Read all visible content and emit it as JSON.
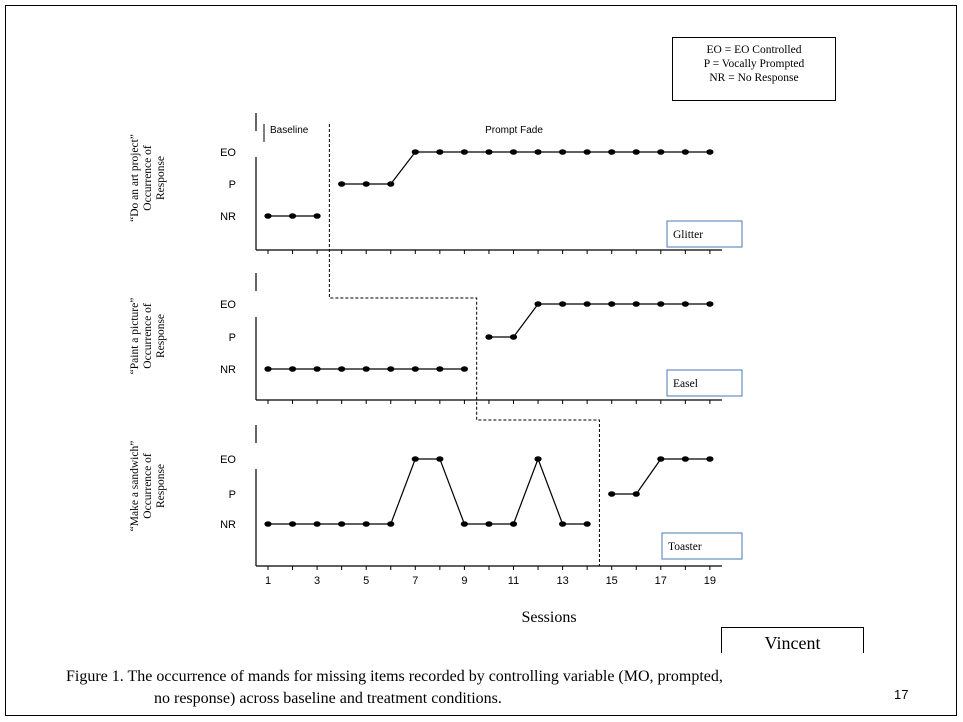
{
  "legend": {
    "lines": [
      "EO = EO Controlled",
      "P = Vocally Prompted",
      "NR = No Response"
    ]
  },
  "phase_labels": {
    "baseline": "Baseline",
    "treatment": "Prompt Fade"
  },
  "xlabel": "Sessions",
  "participant": "Vincent",
  "caption": {
    "line1": "Figure 1. The occurrence of mands for missing items recorded by controlling variable (MO, prompted,",
    "line2": "no response) across baseline and treatment conditions."
  },
  "page_number": "17",
  "chart_data": [
    {
      "type": "line",
      "panel": "Glitter",
      "ylabel_lines": [
        "“Do an art project”",
        "Occurrence of",
        "Response"
      ],
      "yticks": [
        "NR",
        "P",
        "EO"
      ],
      "phase_change_after_session": 3.5,
      "series": [
        {
          "phase": "Baseline",
          "x": [
            1,
            2,
            3
          ],
          "y": [
            "NR",
            "NR",
            "NR"
          ]
        },
        {
          "phase": "Prompt Fade",
          "x": [
            4,
            5,
            6,
            7,
            8,
            9,
            10,
            11,
            12,
            13,
            14,
            15,
            16,
            17,
            18,
            19
          ],
          "y": [
            "P",
            "P",
            "P",
            "EO",
            "EO",
            "EO",
            "EO",
            "EO",
            "EO",
            "EO",
            "EO",
            "EO",
            "EO",
            "EO",
            "EO",
            "EO"
          ]
        }
      ]
    },
    {
      "type": "line",
      "panel": "Easel",
      "ylabel_lines": [
        "“Paint a picture”",
        "Occurrence of",
        "Response"
      ],
      "yticks": [
        "NR",
        "P",
        "EO"
      ],
      "phase_change_after_session": 9.5,
      "series": [
        {
          "phase": "Baseline",
          "x": [
            1,
            2,
            3,
            4,
            5,
            6,
            7,
            8,
            9
          ],
          "y": [
            "NR",
            "NR",
            "NR",
            "NR",
            "NR",
            "NR",
            "NR",
            "NR",
            "NR"
          ]
        },
        {
          "phase": "Prompt Fade",
          "x": [
            10,
            11,
            12,
            13,
            14,
            15,
            16,
            17,
            18,
            19
          ],
          "y": [
            "P",
            "P",
            "EO",
            "EO",
            "EO",
            "EO",
            "EO",
            "EO",
            "EO",
            "EO"
          ]
        }
      ]
    },
    {
      "type": "line",
      "panel": "Toaster",
      "ylabel_lines": [
        "“Make a sandwich”",
        "Occurrence of",
        "Response"
      ],
      "yticks": [
        "NR",
        "P",
        "EO"
      ],
      "phase_change_after_session": 14.5,
      "series": [
        {
          "phase": "Baseline",
          "x": [
            1,
            2,
            3,
            4,
            5,
            6,
            7,
            8,
            9,
            10,
            11,
            12,
            13,
            14
          ],
          "y": [
            "NR",
            "NR",
            "NR",
            "NR",
            "NR",
            "NR",
            "EO",
            "EO",
            "NR",
            "NR",
            "NR",
            "EO",
            "NR",
            "NR"
          ]
        },
        {
          "phase": "Prompt Fade",
          "x": [
            15,
            16,
            17,
            18,
            19
          ],
          "y": [
            "P",
            "P",
            "EO",
            "EO",
            "EO"
          ]
        }
      ],
      "xticks": [
        "1",
        "3",
        "5",
        "7",
        "9",
        "11",
        "13",
        "15",
        "17",
        "19"
      ]
    }
  ]
}
